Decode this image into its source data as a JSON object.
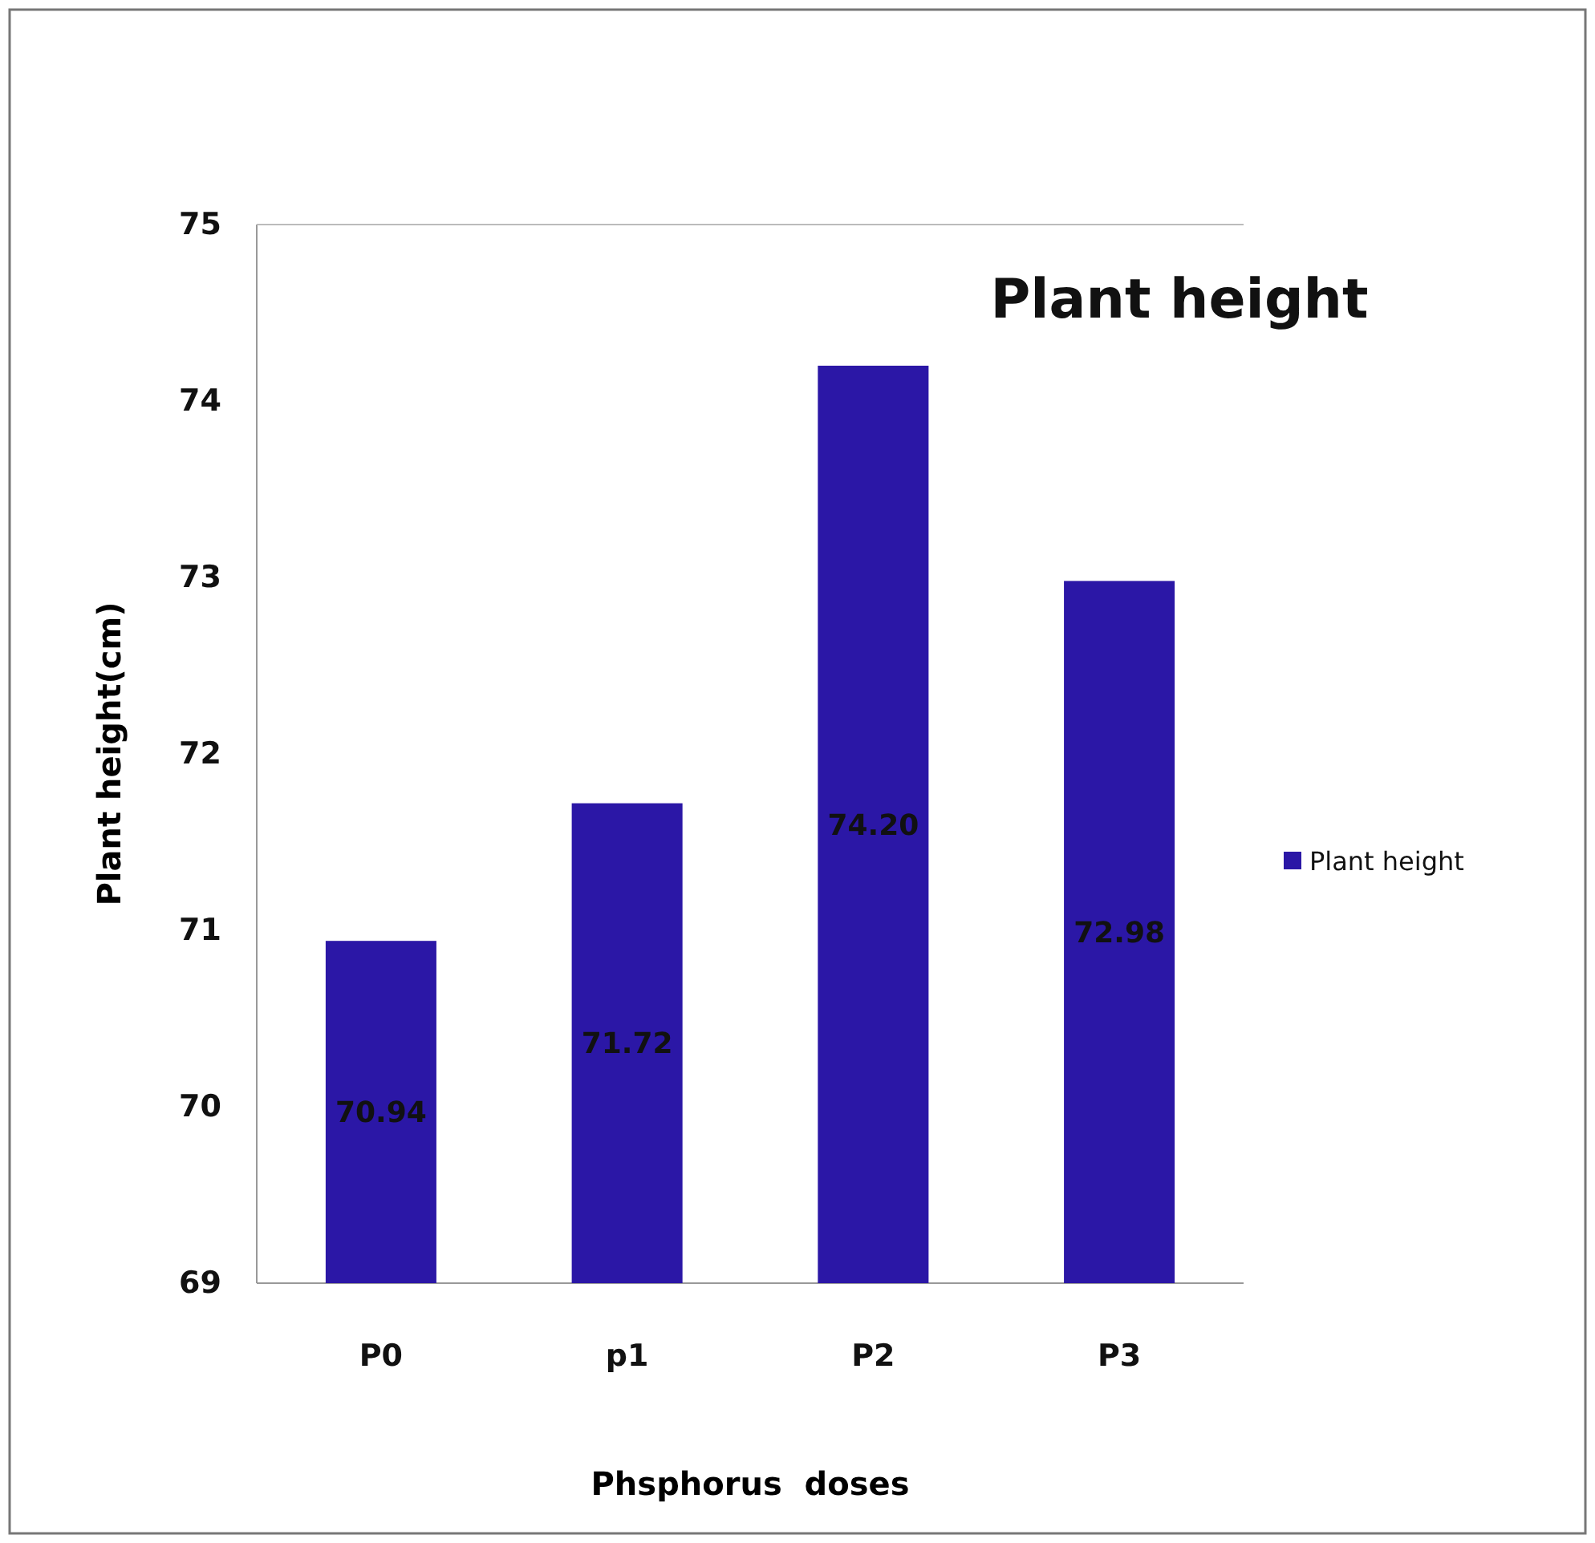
{
  "chart_data": {
    "type": "bar",
    "title": "Plant height",
    "xlabel": "Phsphorus  doses",
    "ylabel": "Plant height(cm)",
    "categories": [
      "P0",
      "p1",
      "P2",
      "P3"
    ],
    "series": [
      {
        "name": "Plant height",
        "color": "#2b17a6",
        "values": [
          70.94,
          71.72,
          74.2,
          72.98
        ],
        "value_labels": [
          "70.94",
          "71.72",
          "74.20",
          "72.98"
        ]
      }
    ],
    "ylim": [
      69,
      75
    ],
    "yticks": [
      69,
      70,
      71,
      72,
      73,
      74,
      75
    ],
    "legend": "right",
    "grid": false
  }
}
